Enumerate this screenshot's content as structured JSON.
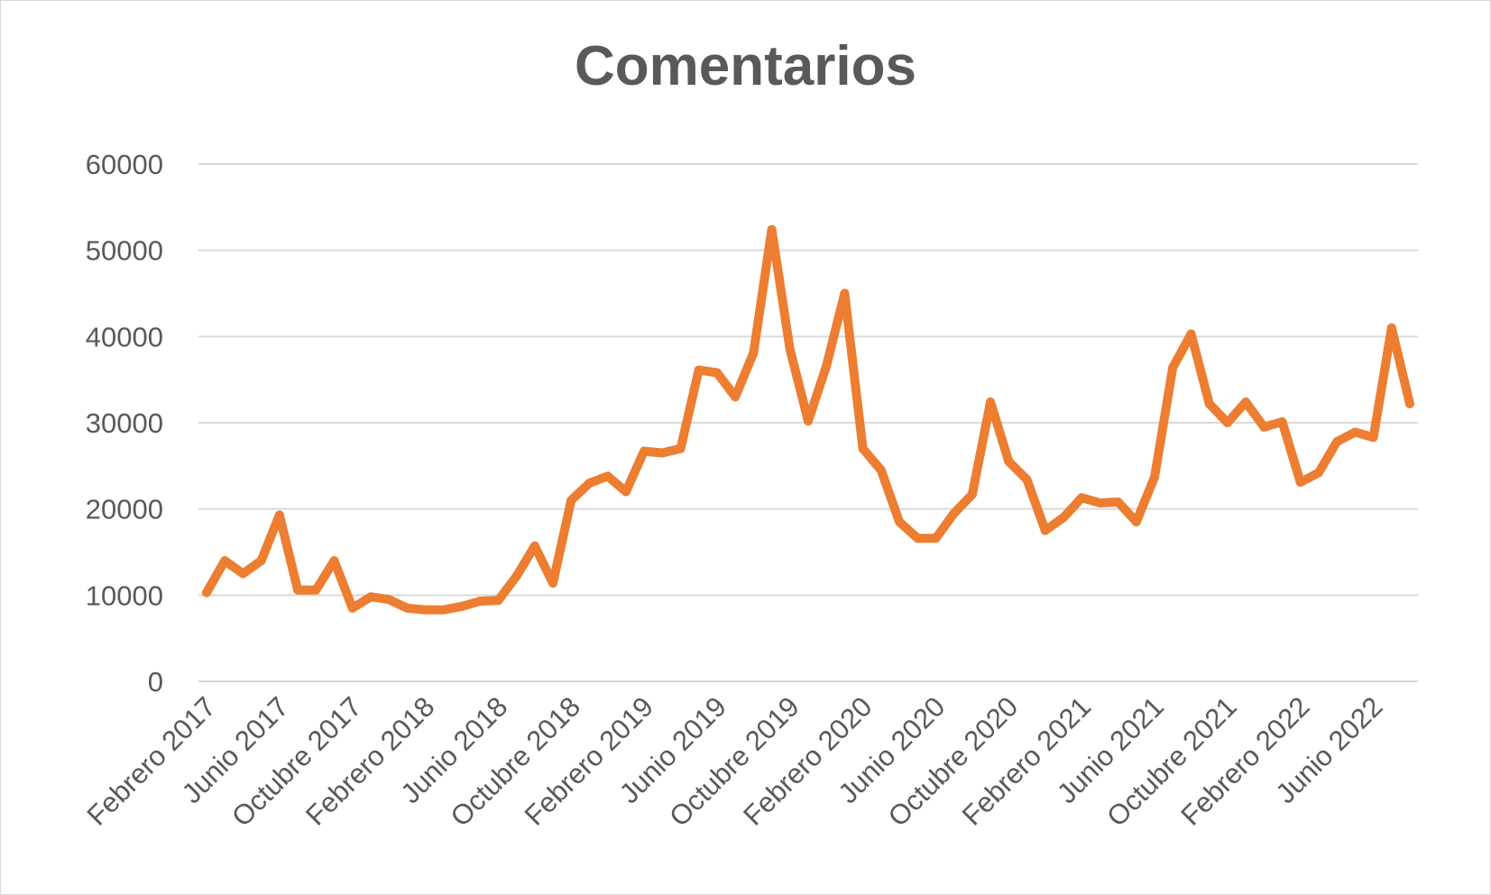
{
  "chart_data": {
    "type": "line",
    "title": "Comentarios",
    "xlabel": "",
    "ylabel": "",
    "ylim": [
      0,
      60000
    ],
    "yticks": [
      0,
      10000,
      20000,
      30000,
      40000,
      50000,
      60000
    ],
    "grid": true,
    "legend": "none",
    "x_tick_labels": [
      {
        "index": 0,
        "label": "Febrero 2017"
      },
      {
        "index": 4,
        "label": "Junio 2017"
      },
      {
        "index": 8,
        "label": "Octubre 2017"
      },
      {
        "index": 12,
        "label": "Febrero 2018"
      },
      {
        "index": 16,
        "label": "Junio 2018"
      },
      {
        "index": 20,
        "label": "Octubre 2018"
      },
      {
        "index": 24,
        "label": "Febrero 2019"
      },
      {
        "index": 28,
        "label": "Junio 2019"
      },
      {
        "index": 32,
        "label": "Octubre 2019"
      },
      {
        "index": 36,
        "label": "Febrero 2020"
      },
      {
        "index": 40,
        "label": "Junio 2020"
      },
      {
        "index": 44,
        "label": "Octubre 2020"
      },
      {
        "index": 48,
        "label": "Febrero 2021"
      },
      {
        "index": 52,
        "label": "Junio 2021"
      },
      {
        "index": 56,
        "label": "Octubre 2021"
      },
      {
        "index": 60,
        "label": "Febrero 2022"
      },
      {
        "index": 64,
        "label": "Junio 2022"
      }
    ],
    "series": [
      {
        "color": "#ed7d31",
        "values": [
          10300,
          14000,
          12500,
          14000,
          19300,
          10600,
          10600,
          14000,
          8500,
          9800,
          9500,
          8500,
          8300,
          8300,
          8700,
          9300,
          9400,
          12200,
          15700,
          11400,
          21000,
          23000,
          23800,
          22000,
          26700,
          26500,
          27000,
          36100,
          35800,
          33000,
          38100,
          52400,
          38500,
          30200,
          36600,
          45000,
          27000,
          24500,
          18500,
          16600,
          16600,
          19500,
          21700,
          32400,
          25500,
          23400,
          17500,
          19000,
          21300,
          20700,
          20800,
          18500,
          23700,
          36400,
          40300,
          32200,
          30000,
          32400,
          29500,
          30100,
          23100,
          24200,
          27800,
          28900,
          28300,
          41000,
          32200
        ]
      }
    ],
    "colors": {
      "line": "#ed7d31",
      "grid": "#d9d9d9",
      "text": "#595959"
    }
  }
}
